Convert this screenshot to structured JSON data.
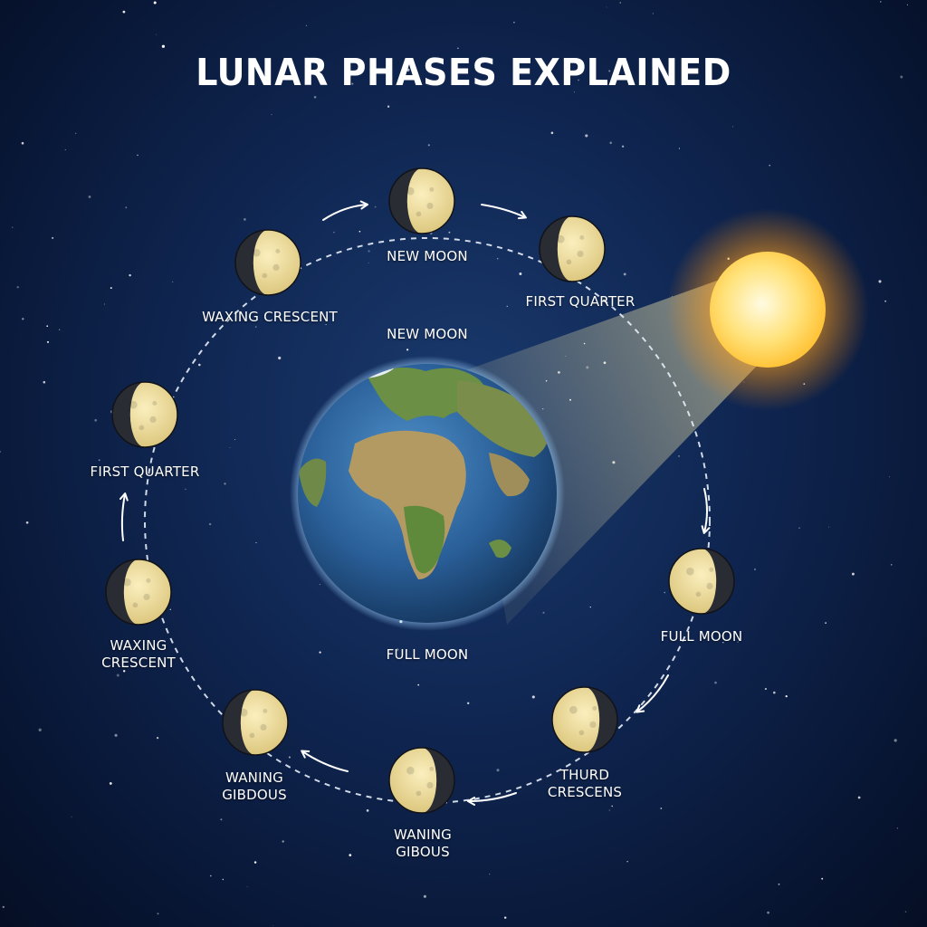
{
  "title": "LUNAR PHASES EXPLAINED",
  "labels": {
    "top": "NEW MOON",
    "upper_right": "FIRST QUARTER",
    "upper_left": "WAXING CRESCENT",
    "inner_top": "NEW MOON",
    "left_upper": "FIRST QUARTER",
    "left_lower_1": "WAXING",
    "left_lower_2": "CRESCENT",
    "right": "FULL MOON",
    "inner_bottom": "FULL MOON",
    "lower_right_1": "THURD",
    "lower_right_2": "CRESCENS",
    "bottom_1": "WANING",
    "bottom_2": "GIBOUS",
    "lower_left_1": "WANING",
    "lower_left_2": "GIBDOUS"
  },
  "colors": {
    "moon_lit": "#f3e2a2",
    "moon_dark": "#2a2c33",
    "sun_core": "#fff4c0",
    "sun_glow": "#ffb020",
    "ocean": "#2f6aa6",
    "land": "#5f8a3c",
    "orbit": "#e6edf7"
  },
  "icons": [
    "moon-icon",
    "sun-icon",
    "earth-icon",
    "arrow-icon"
  ]
}
